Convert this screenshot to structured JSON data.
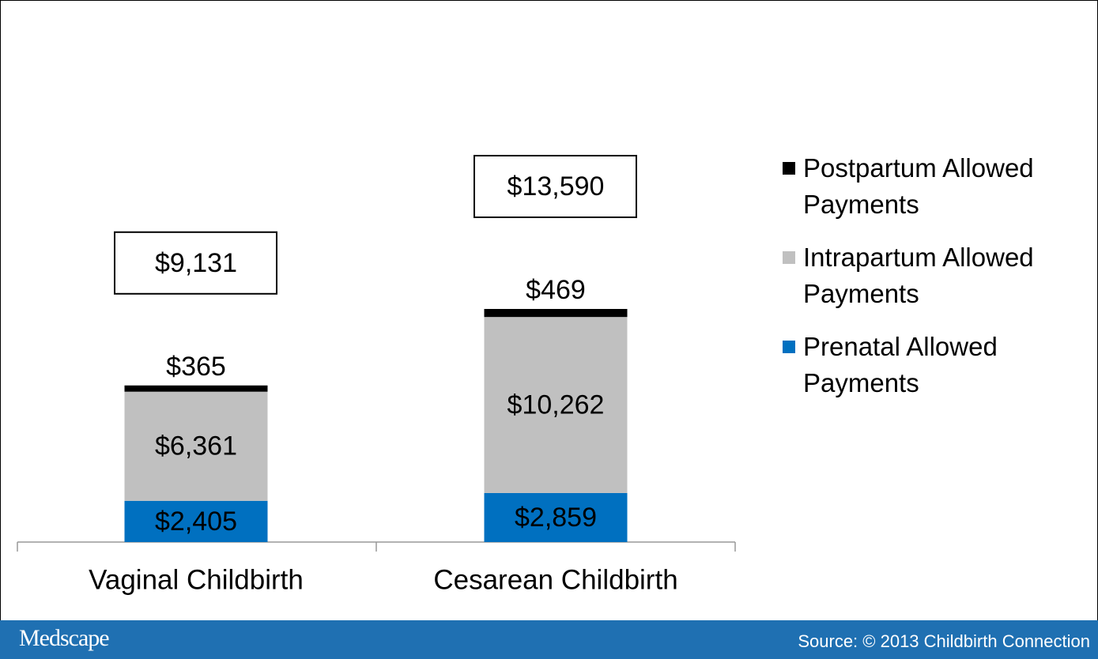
{
  "chart_data": {
    "type": "stacked_bar",
    "categories": [
      "Vaginal Childbirth",
      "Cesarean Childbirth"
    ],
    "series": [
      {
        "name": "Prenatal Allowed Payments",
        "color": "#0070c0",
        "values": [
          2405,
          2859
        ],
        "value_labels": [
          "$2,405",
          "$2,859"
        ]
      },
      {
        "name": "Intrapartum Allowed Payments",
        "color": "#c0c0c0",
        "values": [
          6361,
          10262
        ],
        "value_labels": [
          "$6,361",
          "$10,262"
        ]
      },
      {
        "name": "Postpartum Allowed Payments",
        "color": "#000000",
        "values": [
          365,
          469
        ],
        "value_labels": [
          "$365",
          "$469"
        ]
      }
    ],
    "totals": [
      9131,
      13590
    ],
    "total_labels": [
      "$9,131",
      "$13,590"
    ],
    "legend": "right"
  },
  "footer": {
    "brand": "Medscape",
    "source": "Source: © 2013 Childbirth Connection"
  }
}
